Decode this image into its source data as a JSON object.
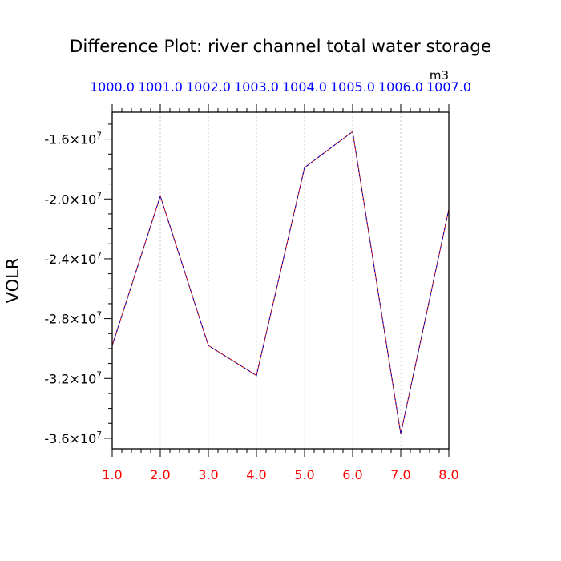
{
  "chart_data": {
    "type": "line",
    "title": "Difference Plot: river channel total water storage",
    "ylabel": "VOLR",
    "units": "m3",
    "x": [
      1.0,
      2.0,
      3.0,
      4.0,
      5.0,
      6.0,
      7.0,
      8.0
    ],
    "xlim": [
      1.0,
      8.0
    ],
    "ylim": [
      -36700000,
      -14200000
    ],
    "xticks_bottom": [
      "1.0",
      "2.0",
      "3.0",
      "4.0",
      "5.0",
      "6.0",
      "7.0",
      "8.0"
    ],
    "xticks_top": [
      "1000.0",
      "1001.0",
      "1002.0",
      "1003.0",
      "1004.0",
      "1005.0",
      "1006.0",
      "1007.0"
    ],
    "yticks": [
      {
        "value": -16000000,
        "mantissa": "-1.6",
        "times": "×10",
        "exp": "7"
      },
      {
        "value": -20000000,
        "mantissa": "-2.0",
        "times": "×10",
        "exp": "7"
      },
      {
        "value": -24000000,
        "mantissa": "-2.4",
        "times": "×10",
        "exp": "7"
      },
      {
        "value": -28000000,
        "mantissa": "-2.8",
        "times": "×10",
        "exp": "7"
      },
      {
        "value": -32000000,
        "mantissa": "-3.2",
        "times": "×10",
        "exp": "7"
      },
      {
        "value": -36000000,
        "mantissa": "-3.6",
        "times": "×10",
        "exp": "7"
      }
    ],
    "series": [
      {
        "values": [
          -29800000,
          -19800000,
          -29800000,
          -31800000,
          -17900000,
          -15500000,
          -35700000,
          -20700000
        ],
        "color": "#cc0000"
      },
      {
        "values": [
          -29800000,
          -19800000,
          -29800000,
          -31800000,
          -17900000,
          -15500000,
          -35700000,
          -20700000
        ],
        "color": "#0000cc"
      }
    ],
    "grid": {
      "x": true,
      "y": false
    },
    "colors": {
      "bottom_ticks": "#ff0000",
      "top_ticks": "#0000ff",
      "grid": "#c8c8c8",
      "axis": "#000000"
    }
  }
}
